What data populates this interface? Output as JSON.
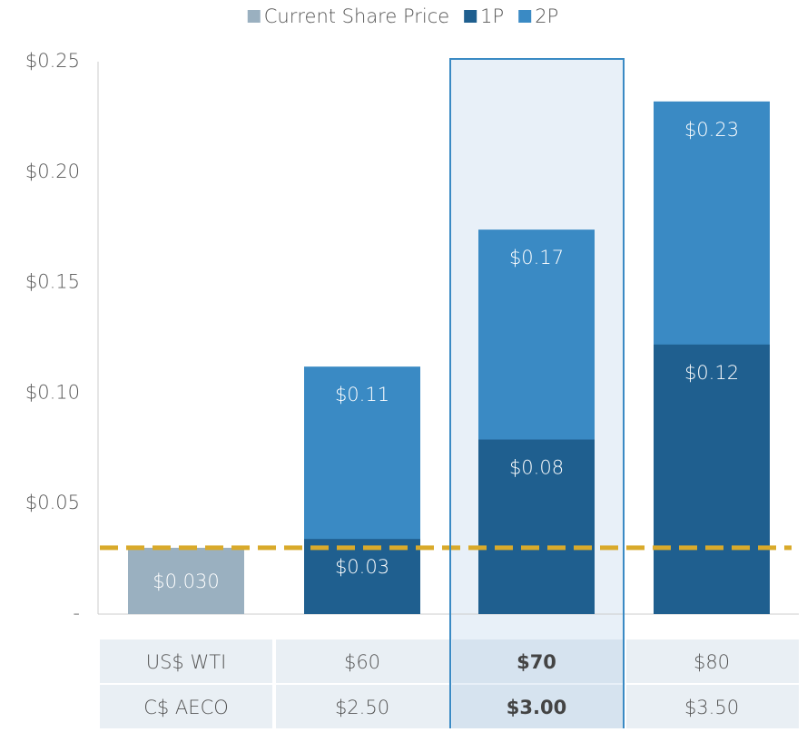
{
  "chart_data": {
    "type": "bar",
    "series": [
      {
        "name": "Current Share Price",
        "color": "#9ab0c0",
        "values": [
          0.03,
          null,
          null,
          null
        ],
        "value_labels": [
          "$0.030",
          null,
          null,
          null
        ]
      },
      {
        "name": "1P",
        "color": "#1f5f8f",
        "values": [
          null,
          0.034,
          0.079,
          0.122
        ],
        "value_labels": [
          null,
          "$0.03",
          "$0.08",
          "$0.12"
        ]
      },
      {
        "name": "2P",
        "color": "#3a8ac4",
        "values": [
          null,
          0.112,
          0.174,
          0.232
        ],
        "value_labels": [
          null,
          "$0.11",
          "$0.17",
          "$0.23"
        ]
      }
    ],
    "ylim": [
      0,
      0.25
    ],
    "yticks": [
      {
        "value": 0,
        "label": "-"
      },
      {
        "value": 0.05,
        "label": "$0.05"
      },
      {
        "value": 0.1,
        "label": "$0.10"
      },
      {
        "value": 0.15,
        "label": "$0.15"
      },
      {
        "value": 0.2,
        "label": "$0.20"
      },
      {
        "value": 0.25,
        "label": "$0.25"
      }
    ],
    "reference_line": 0.03,
    "reference_color": "#d9aa2b",
    "highlight": 2,
    "table_rows": [
      {
        "label": "US$ WTI",
        "values": [
          "$60",
          "$70",
          "$80"
        ]
      },
      {
        "label": "C$ AECO",
        "values": [
          "$2.50",
          "$3.00",
          "$3.50"
        ]
      }
    ]
  }
}
